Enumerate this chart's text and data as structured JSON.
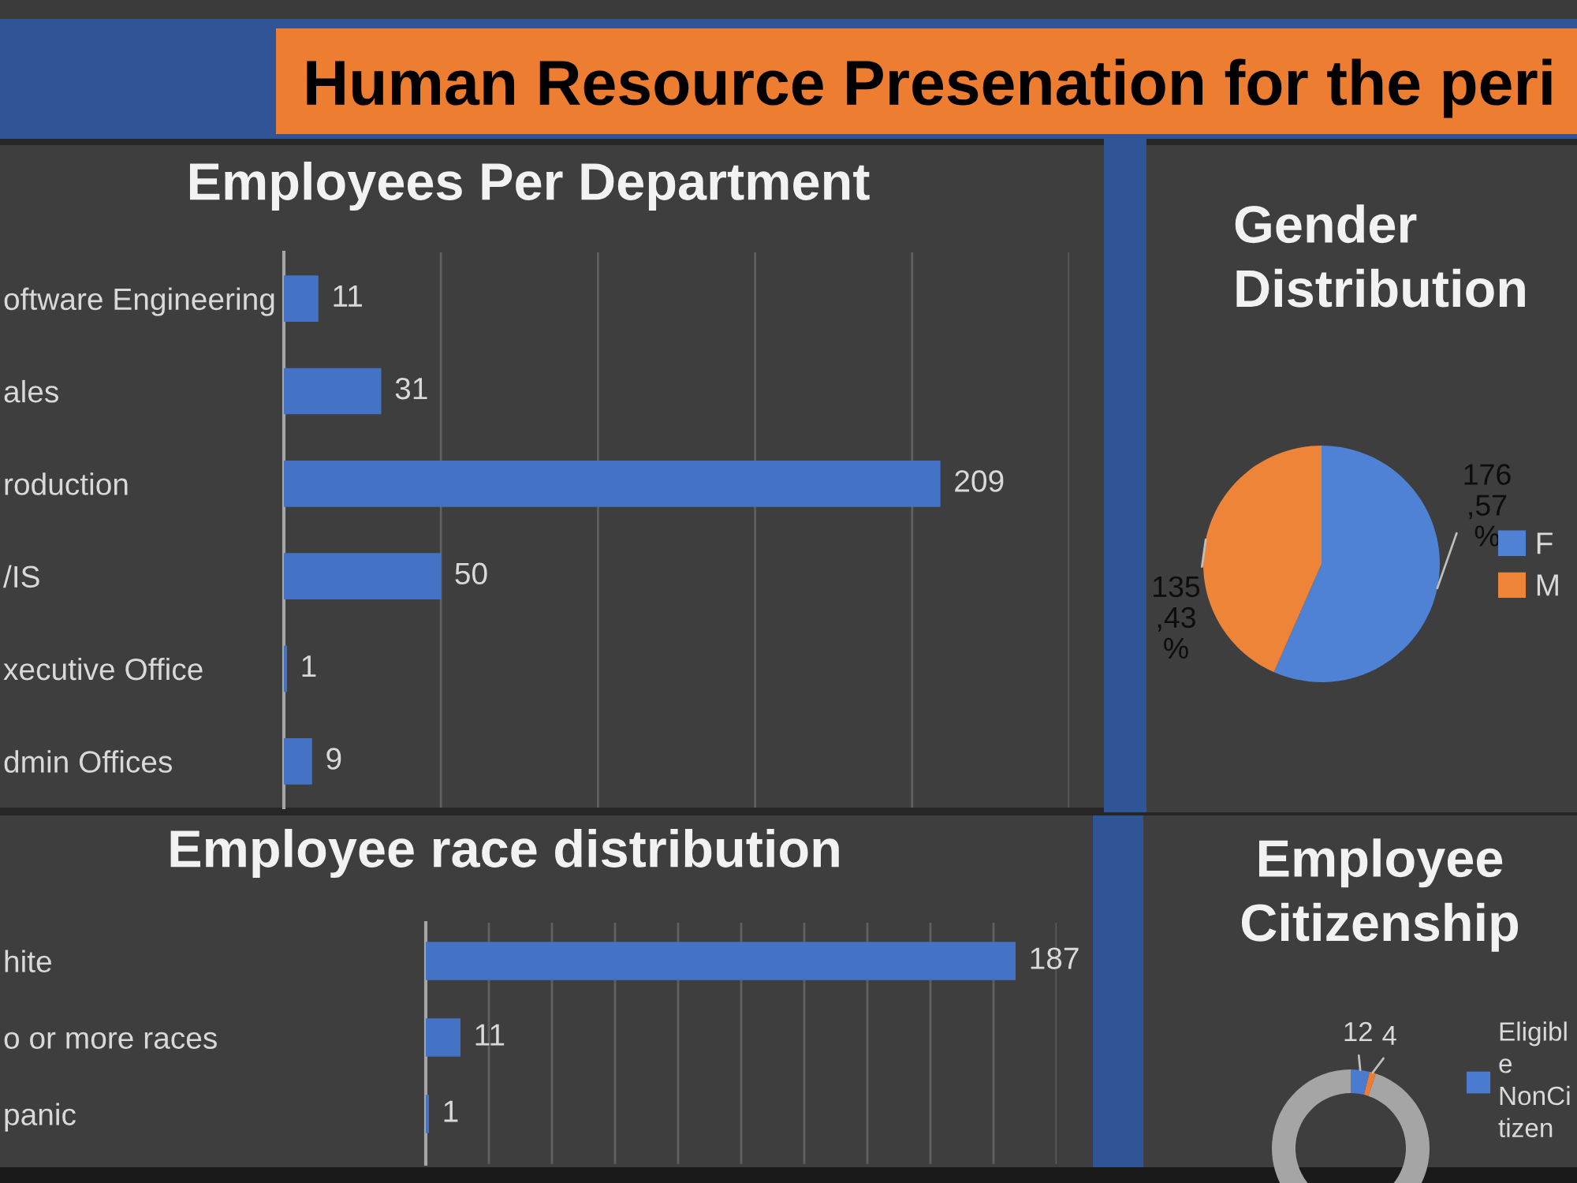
{
  "chart_data": [
    {
      "type": "other",
      "title": "Human Resource Presenation for the peri"
    },
    {
      "type": "bar",
      "orientation": "horizontal",
      "title": "Employees Per Department",
      "categories": [
        "oftware Engineering",
        "ales",
        "roduction",
        "/IS",
        "xecutive Office",
        "dmin Offices"
      ],
      "values": [
        11,
        31,
        209,
        50,
        1,
        9
      ],
      "color": "#4472c4",
      "data_labels": true,
      "xlim": [
        0,
        250
      ],
      "xticks": [
        {
          "value": 0,
          "label": null
        },
        {
          "value": 50,
          "label": null
        },
        {
          "value": 100,
          "label": null
        },
        {
          "value": 150,
          "label": null
        },
        {
          "value": 200,
          "label": null
        },
        {
          "value": 250,
          "label": null
        }
      ],
      "grid": "x",
      "tick_labels": "y"
    },
    {
      "type": "pie",
      "title": "Gender\nDistribution",
      "categories": [
        "F",
        "M"
      ],
      "values": [
        176,
        135
      ],
      "colors": [
        "#4f81d4",
        "#ee8437"
      ],
      "value_labels": [
        "176\n,57\n%",
        "135\n,43\n%"
      ],
      "legend": "right"
    },
    {
      "type": "bar",
      "orientation": "horizontal",
      "title": "Employee race distribution",
      "categories": [
        "hite",
        "o or more races",
        "panic"
      ],
      "values": [
        187,
        11,
        1
      ],
      "color": "#4472c4",
      "data_labels": true,
      "xlim": [
        0,
        200
      ],
      "xticks": [
        {
          "value": 0,
          "label": null
        },
        {
          "value": 20,
          "label": null
        },
        {
          "value": 40,
          "label": null
        },
        {
          "value": 60,
          "label": null
        },
        {
          "value": 80,
          "label": null
        },
        {
          "value": 100,
          "label": null
        },
        {
          "value": 120,
          "label": null
        },
        {
          "value": 140,
          "label": null
        },
        {
          "value": 160,
          "label": null
        },
        {
          "value": 180,
          "label": null
        },
        {
          "value": 200,
          "label": null
        }
      ],
      "grid": "x",
      "tick_labels": "y"
    },
    {
      "type": "donut",
      "title": "Employee\nCitizenship",
      "categories": [
        "Eligibl\ne\nNonCi\ntizen",
        null,
        null
      ],
      "values": [
        12,
        4,
        295
      ],
      "colors": [
        "#4a7bd0",
        "#ed7d31",
        "#a5a5a5"
      ],
      "value_labels": [
        "12",
        "4",
        null
      ],
      "legend": "right"
    }
  ]
}
